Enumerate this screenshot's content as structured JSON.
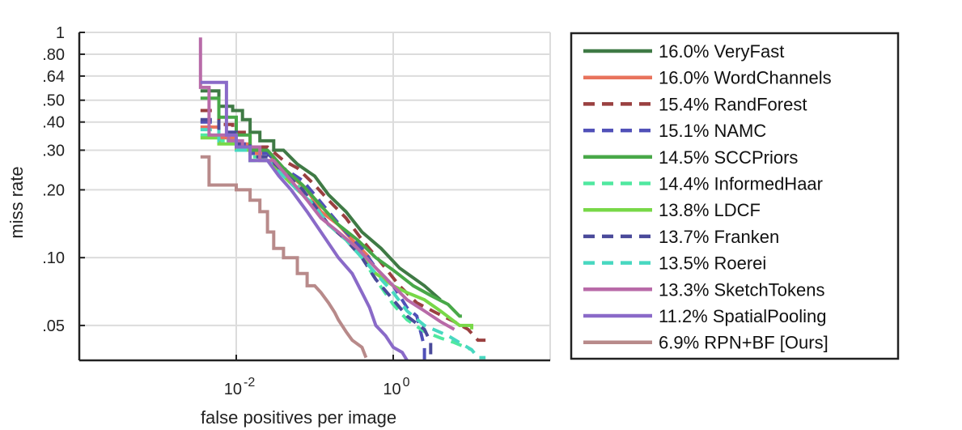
{
  "chart_data": {
    "type": "line",
    "xlabel": "false positives per image",
    "ylabel": "miss rate",
    "xscale": "log",
    "yscale": "log",
    "xlim": [
      0.0001,
      100
    ],
    "ylim": [
      0.035,
      1
    ],
    "x_ticks": [
      {
        "value": 0.01,
        "base": "10",
        "exp": "-2"
      },
      {
        "value": 1,
        "base": "10",
        "exp": "0"
      }
    ],
    "x_gridlines": [
      0.01,
      1,
      100
    ],
    "y_ticks": [
      {
        "value": 1,
        "label": "1"
      },
      {
        "value": 0.8,
        "label": ".80"
      },
      {
        "value": 0.64,
        "label": ".64"
      },
      {
        "value": 0.5,
        "label": ".50"
      },
      {
        "value": 0.4,
        "label": ".40"
      },
      {
        "value": 0.3,
        "label": ".30"
      },
      {
        "value": 0.2,
        "label": ".20"
      },
      {
        "value": 0.1,
        "label": ".10"
      },
      {
        "value": 0.05,
        "label": ".05"
      }
    ],
    "grid": true,
    "legend_position": "right",
    "series": [
      {
        "name": "VeryFast",
        "label": "16.0% VeryFast",
        "color": "#3f7a45",
        "dash": "solid",
        "points": [
          [
            0.0035,
            0.55
          ],
          [
            0.006,
            0.55
          ],
          [
            0.006,
            0.47
          ],
          [
            0.009,
            0.47
          ],
          [
            0.009,
            0.45
          ],
          [
            0.012,
            0.45
          ],
          [
            0.012,
            0.41
          ],
          [
            0.015,
            0.41
          ],
          [
            0.015,
            0.36
          ],
          [
            0.02,
            0.36
          ],
          [
            0.02,
            0.33
          ],
          [
            0.03,
            0.33
          ],
          [
            0.03,
            0.3
          ],
          [
            0.04,
            0.3
          ],
          [
            0.06,
            0.26
          ],
          [
            0.1,
            0.23
          ],
          [
            0.15,
            0.19
          ],
          [
            0.25,
            0.16
          ],
          [
            0.4,
            0.13
          ],
          [
            0.7,
            0.11
          ],
          [
            1.2,
            0.09
          ],
          [
            2.5,
            0.075
          ],
          [
            4,
            0.065
          ]
        ]
      },
      {
        "name": "WordChannels",
        "label": "16.0% WordChannels",
        "color": "#e8735c",
        "dash": "solid",
        "points": [
          [
            0.0035,
            0.38
          ],
          [
            0.006,
            0.38
          ],
          [
            0.006,
            0.34
          ],
          [
            0.01,
            0.34
          ],
          [
            0.01,
            0.32
          ],
          [
            0.015,
            0.32
          ],
          [
            0.015,
            0.29
          ],
          [
            0.025,
            0.29
          ],
          [
            0.035,
            0.26
          ],
          [
            0.05,
            0.23
          ],
          [
            0.08,
            0.2
          ],
          [
            0.12,
            0.16
          ],
          [
            0.2,
            0.14
          ],
          [
            0.3,
            0.12
          ],
          [
            0.5,
            0.1
          ]
        ]
      },
      {
        "name": "RandForest",
        "label": "15.4% RandForest",
        "color": "#9a4040",
        "dash": "dash",
        "points": [
          [
            0.0035,
            0.45
          ],
          [
            0.006,
            0.45
          ],
          [
            0.006,
            0.39
          ],
          [
            0.009,
            0.39
          ],
          [
            0.009,
            0.36
          ],
          [
            0.015,
            0.36
          ],
          [
            0.015,
            0.31
          ],
          [
            0.025,
            0.31
          ],
          [
            0.04,
            0.27
          ],
          [
            0.06,
            0.25
          ],
          [
            0.1,
            0.21
          ],
          [
            0.15,
            0.18
          ],
          [
            0.25,
            0.15
          ],
          [
            0.4,
            0.12
          ],
          [
            0.7,
            0.095
          ],
          [
            1.2,
            0.075
          ],
          [
            2,
            0.063
          ],
          [
            3.5,
            0.057
          ],
          [
            6,
            0.052
          ],
          [
            9,
            0.048
          ],
          [
            12,
            0.043
          ],
          [
            15,
            0.043
          ]
        ]
      },
      {
        "name": "NAMC",
        "label": "15.1% NAMC",
        "color": "#5050b8",
        "dash": "dash",
        "points": [
          [
            0.0035,
            0.4
          ],
          [
            0.006,
            0.4
          ],
          [
            0.006,
            0.36
          ],
          [
            0.01,
            0.36
          ],
          [
            0.01,
            0.32
          ],
          [
            0.015,
            0.32
          ],
          [
            0.015,
            0.29
          ],
          [
            0.025,
            0.29
          ],
          [
            0.04,
            0.25
          ],
          [
            0.07,
            0.22
          ],
          [
            0.1,
            0.19
          ],
          [
            0.15,
            0.16
          ],
          [
            0.25,
            0.13
          ],
          [
            0.4,
            0.11
          ],
          [
            0.6,
            0.09
          ],
          [
            1,
            0.075
          ],
          [
            1.5,
            0.06
          ],
          [
            2,
            0.055
          ],
          [
            2.5,
            0.04
          ],
          [
            2.5,
            0.035
          ]
        ]
      },
      {
        "name": "SCCPriors",
        "label": "14.5% SCCPriors",
        "color": "#48a848",
        "dash": "solid",
        "points": [
          [
            0.0035,
            0.51
          ],
          [
            0.006,
            0.51
          ],
          [
            0.006,
            0.42
          ],
          [
            0.01,
            0.42
          ],
          [
            0.01,
            0.35
          ],
          [
            0.015,
            0.35
          ],
          [
            0.015,
            0.3
          ],
          [
            0.025,
            0.3
          ],
          [
            0.04,
            0.25
          ],
          [
            0.07,
            0.21
          ],
          [
            0.12,
            0.17
          ],
          [
            0.2,
            0.14
          ],
          [
            0.35,
            0.12
          ],
          [
            0.6,
            0.1
          ],
          [
            1,
            0.088
          ],
          [
            1.8,
            0.075
          ],
          [
            3,
            0.068
          ],
          [
            5,
            0.062
          ],
          [
            7,
            0.055
          ],
          [
            7.5,
            0.055
          ]
        ]
      },
      {
        "name": "InformedHaar",
        "label": "14.4% InformedHaar",
        "color": "#50e8a0",
        "dash": "dash",
        "points": [
          [
            0.0035,
            0.35
          ],
          [
            0.006,
            0.35
          ],
          [
            0.006,
            0.33
          ],
          [
            0.01,
            0.33
          ],
          [
            0.01,
            0.31
          ],
          [
            0.015,
            0.31
          ],
          [
            0.015,
            0.28
          ],
          [
            0.025,
            0.28
          ],
          [
            0.04,
            0.24
          ],
          [
            0.06,
            0.21
          ],
          [
            0.1,
            0.17
          ],
          [
            0.15,
            0.14
          ],
          [
            0.25,
            0.12
          ],
          [
            0.4,
            0.1
          ],
          [
            0.6,
            0.08
          ],
          [
            1,
            0.062
          ],
          [
            1.5,
            0.053
          ],
          [
            2.5,
            0.047
          ],
          [
            4,
            0.044
          ],
          [
            6,
            0.042
          ],
          [
            10,
            0.039
          ]
        ]
      },
      {
        "name": "LDCF",
        "label": "13.8% LDCF",
        "color": "#78d848",
        "dash": "solid",
        "points": [
          [
            0.0035,
            0.34
          ],
          [
            0.006,
            0.34
          ],
          [
            0.006,
            0.32
          ],
          [
            0.01,
            0.32
          ],
          [
            0.01,
            0.3
          ],
          [
            0.015,
            0.3
          ],
          [
            0.015,
            0.27
          ],
          [
            0.025,
            0.27
          ],
          [
            0.04,
            0.23
          ],
          [
            0.06,
            0.2
          ],
          [
            0.1,
            0.17
          ],
          [
            0.15,
            0.14
          ],
          [
            0.25,
            0.12
          ],
          [
            0.4,
            0.1
          ],
          [
            0.6,
            0.085
          ],
          [
            1,
            0.075
          ],
          [
            1.5,
            0.07
          ],
          [
            2.5,
            0.065
          ],
          [
            4,
            0.058
          ],
          [
            7,
            0.05
          ],
          [
            10,
            0.05
          ],
          [
            10,
            0.048
          ]
        ]
      },
      {
        "name": "Franken",
        "label": "13.7% Franken",
        "color": "#4a4a9a",
        "dash": "dash",
        "points": [
          [
            0.0035,
            0.41
          ],
          [
            0.006,
            0.41
          ],
          [
            0.006,
            0.36
          ],
          [
            0.01,
            0.36
          ],
          [
            0.01,
            0.32
          ],
          [
            0.015,
            0.32
          ],
          [
            0.015,
            0.28
          ],
          [
            0.025,
            0.28
          ],
          [
            0.04,
            0.24
          ],
          [
            0.07,
            0.2
          ],
          [
            0.1,
            0.17
          ],
          [
            0.15,
            0.14
          ],
          [
            0.25,
            0.12
          ],
          [
            0.4,
            0.1
          ],
          [
            0.6,
            0.08
          ],
          [
            1,
            0.065
          ],
          [
            1.5,
            0.055
          ],
          [
            2.5,
            0.048
          ],
          [
            3,
            0.042
          ],
          [
            3,
            0.036
          ]
        ]
      },
      {
        "name": "Roerei",
        "label": "13.5% Roerei",
        "color": "#48d8c0",
        "dash": "dash",
        "points": [
          [
            0.0035,
            0.37
          ],
          [
            0.006,
            0.37
          ],
          [
            0.006,
            0.33
          ],
          [
            0.01,
            0.33
          ],
          [
            0.01,
            0.3
          ],
          [
            0.015,
            0.3
          ],
          [
            0.015,
            0.27
          ],
          [
            0.025,
            0.27
          ],
          [
            0.04,
            0.23
          ],
          [
            0.06,
            0.2
          ],
          [
            0.1,
            0.17
          ],
          [
            0.15,
            0.14
          ],
          [
            0.25,
            0.12
          ],
          [
            0.4,
            0.1
          ],
          [
            0.6,
            0.085
          ],
          [
            1,
            0.07
          ],
          [
            1.5,
            0.058
          ],
          [
            2.5,
            0.05
          ],
          [
            5,
            0.045
          ],
          [
            10,
            0.039
          ],
          [
            12,
            0.036
          ],
          [
            15,
            0.036
          ]
        ]
      },
      {
        "name": "SketchTokens",
        "label": "13.3% SketchTokens",
        "color": "#b86aa8",
        "dash": "solid",
        "points": [
          [
            0.0035,
            0.95
          ],
          [
            0.0035,
            0.57
          ],
          [
            0.0045,
            0.57
          ],
          [
            0.0045,
            0.35
          ],
          [
            0.008,
            0.35
          ],
          [
            0.008,
            0.33
          ],
          [
            0.012,
            0.33
          ],
          [
            0.012,
            0.31
          ],
          [
            0.02,
            0.31
          ],
          [
            0.02,
            0.27
          ],
          [
            0.03,
            0.27
          ],
          [
            0.05,
            0.22
          ],
          [
            0.08,
            0.18
          ],
          [
            0.12,
            0.15
          ],
          [
            0.2,
            0.13
          ],
          [
            0.35,
            0.11
          ],
          [
            0.6,
            0.09
          ],
          [
            1,
            0.075
          ],
          [
            1.5,
            0.065
          ],
          [
            2.5,
            0.058
          ],
          [
            4,
            0.052
          ],
          [
            6,
            0.048
          ]
        ]
      },
      {
        "name": "SpatialPooling",
        "label": "11.2% SpatialPooling",
        "color": "#8a6ac8",
        "dash": "solid",
        "points": [
          [
            0.0035,
            0.6
          ],
          [
            0.0035,
            0.6
          ],
          [
            0.0075,
            0.6
          ],
          [
            0.0075,
            0.35
          ],
          [
            0.01,
            0.35
          ],
          [
            0.01,
            0.31
          ],
          [
            0.015,
            0.31
          ],
          [
            0.015,
            0.27
          ],
          [
            0.025,
            0.27
          ],
          [
            0.035,
            0.23
          ],
          [
            0.05,
            0.2
          ],
          [
            0.08,
            0.16
          ],
          [
            0.12,
            0.13
          ],
          [
            0.2,
            0.1
          ],
          [
            0.3,
            0.085
          ],
          [
            0.4,
            0.07
          ],
          [
            0.5,
            0.06
          ],
          [
            0.6,
            0.05
          ],
          [
            0.8,
            0.045
          ],
          [
            1,
            0.04
          ],
          [
            1.3,
            0.038
          ],
          [
            1.5,
            0.035
          ]
        ]
      },
      {
        "name": "RPN+BF",
        "label": "6.9% RPN+BF [Ours]",
        "color": "#b88a8a",
        "dash": "solid",
        "points": [
          [
            0.0035,
            0.28
          ],
          [
            0.0045,
            0.28
          ],
          [
            0.0045,
            0.21
          ],
          [
            0.01,
            0.21
          ],
          [
            0.01,
            0.2
          ],
          [
            0.015,
            0.2
          ],
          [
            0.015,
            0.18
          ],
          [
            0.02,
            0.18
          ],
          [
            0.02,
            0.16
          ],
          [
            0.025,
            0.16
          ],
          [
            0.025,
            0.13
          ],
          [
            0.03,
            0.13
          ],
          [
            0.03,
            0.11
          ],
          [
            0.04,
            0.11
          ],
          [
            0.04,
            0.1
          ],
          [
            0.06,
            0.1
          ],
          [
            0.06,
            0.085
          ],
          [
            0.08,
            0.085
          ],
          [
            0.08,
            0.075
          ],
          [
            0.1,
            0.075
          ],
          [
            0.12,
            0.07
          ],
          [
            0.15,
            0.063
          ],
          [
            0.18,
            0.057
          ],
          [
            0.2,
            0.053
          ],
          [
            0.25,
            0.047
          ],
          [
            0.3,
            0.043
          ],
          [
            0.4,
            0.04
          ],
          [
            0.45,
            0.036
          ]
        ]
      }
    ]
  }
}
